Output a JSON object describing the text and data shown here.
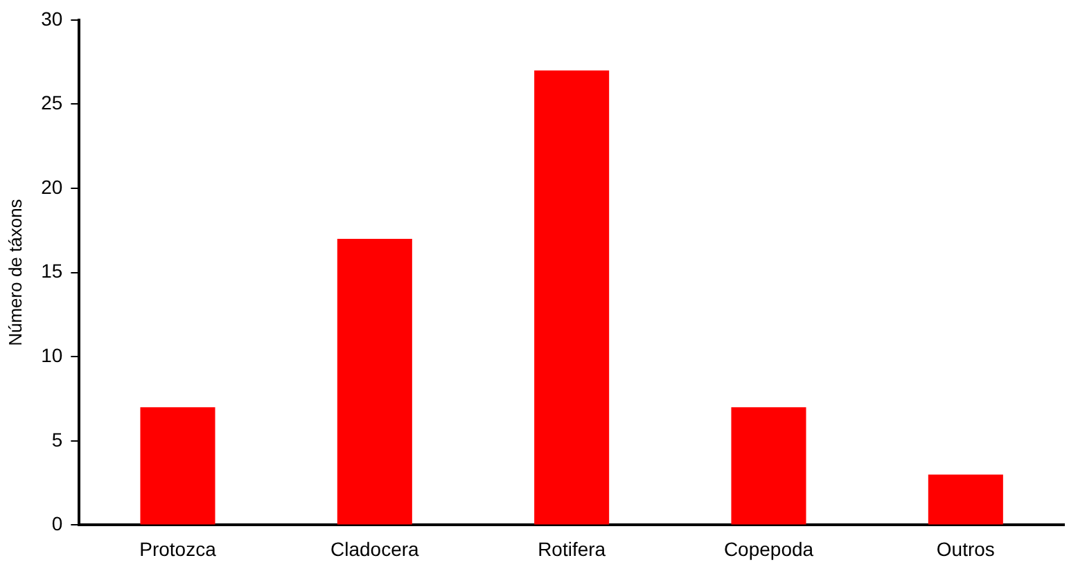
{
  "chart_data": {
    "type": "bar",
    "ylabel": "Número de táxons",
    "categories": [
      "Protozca",
      "Cladocera",
      "Rotifera",
      "Copepoda",
      "Outros"
    ],
    "values": [
      7,
      17,
      27,
      7,
      3
    ],
    "color": "#ff0000",
    "ylim": [
      0,
      30
    ],
    "yticks": [
      0,
      5,
      10,
      15,
      20,
      25,
      30
    ],
    "grid": false,
    "legend": false
  }
}
